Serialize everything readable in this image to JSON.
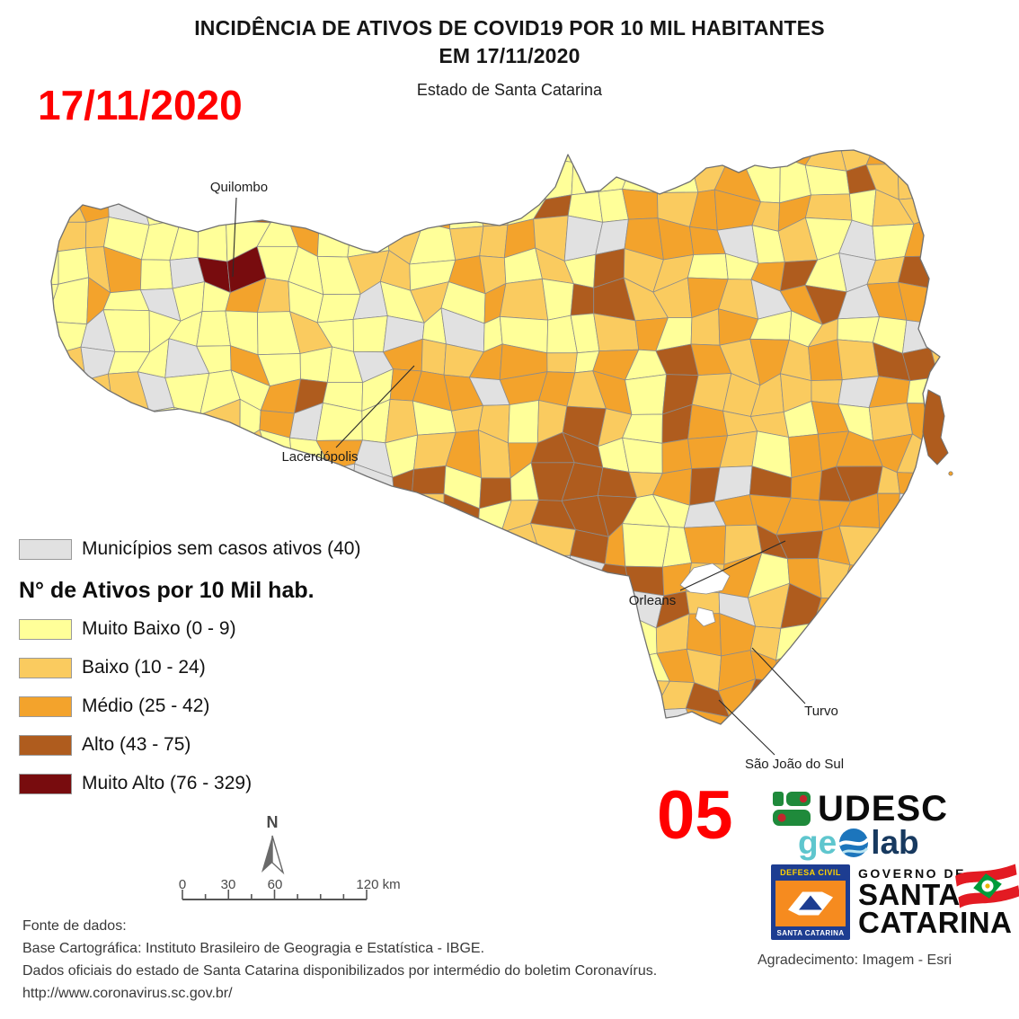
{
  "title": {
    "line1": "INCIDÊNCIA DE ATIVOS DE COVID19 POR 10 MIL HABITANTES",
    "line2": "EM 17/11/2020",
    "subtitle": "Estado de Santa Catarina"
  },
  "date_stamp": "17/11/2020",
  "slide_number": "05",
  "accent_red": "#FF0000",
  "legend": {
    "no_cases": {
      "label": "Municípios sem casos ativos (40)",
      "color": "#E1E1E1",
      "border": "#999999"
    },
    "title": "N° de Ativos por 10 Mil hab.",
    "classes": [
      {
        "label": "Muito Baixo (0 - 9)",
        "color": "#FFFF99"
      },
      {
        "label": "Baixo (10 - 24)",
        "color": "#FACB5F"
      },
      {
        "label": "Médio (25 - 42)",
        "color": "#F3A32C"
      },
      {
        "label": "Alto (43 - 75)",
        "color": "#AF5C1E"
      },
      {
        "label": "Muito Alto (76 - 329)",
        "color": "#780C0E"
      }
    ],
    "cell_border": "#8C8C8C",
    "state_outline": "#707070"
  },
  "map": {
    "labels": [
      {
        "name": "Quilombo"
      },
      {
        "name": "Lacerdópolis"
      },
      {
        "name": "Orleans"
      },
      {
        "name": "Turvo"
      },
      {
        "name": "São João do Sul"
      }
    ],
    "north_label": "N"
  },
  "scalebar": {
    "labels": [
      "0",
      "30",
      "60",
      "120 km"
    ]
  },
  "logos": {
    "udesc": "UDESC",
    "geolab_ge": "ge",
    "geolab_lab": "lab",
    "defesa_top": "DEFESA CIVIL",
    "defesa_bottom": "SANTA CATARINA",
    "governo_line1": "GOVERNO DE",
    "governo_line2": "SANTA",
    "governo_line3": "CATARINA",
    "credit": "Agradecimento: Imagem - Esri"
  },
  "source": {
    "line1": "Fonte de dados:",
    "line2": "Base Cartográfica: Instituto Brasileiro de Geogragia e Estatística - IBGE.",
    "line3": "Dados oficiais do estado de Santa Catarina disponibilizados por intermédio do boletim Coronavírus.",
    "line4": "http://www.coronavirus.sc.gov.br/"
  }
}
